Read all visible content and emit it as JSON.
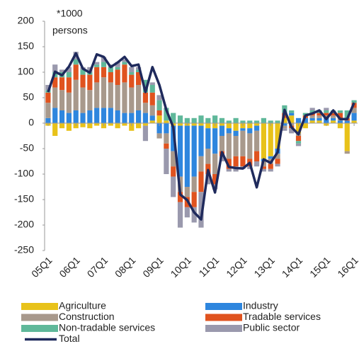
{
  "chart_data": {
    "type": "stacked-bar-line",
    "annotation": [
      "*1000",
      "persons"
    ],
    "categories": [
      "05Q1",
      null,
      null,
      null,
      "06Q1",
      null,
      null,
      null,
      "07Q1",
      null,
      null,
      null,
      "08Q1",
      null,
      null,
      null,
      "09Q1",
      null,
      null,
      null,
      "10Q1",
      null,
      null,
      null,
      "11Q1",
      null,
      null,
      null,
      "12Q1",
      null,
      null,
      null,
      "13Q1",
      null,
      null,
      null,
      "14Q1",
      null,
      null,
      null,
      "15Q1",
      null,
      null,
      null,
      "16Q1"
    ],
    "series": [
      {
        "name": "Agriculture",
        "color": "#e8c21a",
        "values": [
          -5,
          -25,
          -10,
          -15,
          -10,
          -8,
          -10,
          -5,
          -10,
          -5,
          -10,
          -5,
          -15,
          -10,
          -5,
          5,
          15,
          5,
          -5,
          -5,
          -5,
          -5,
          -5,
          -10,
          -10,
          -5,
          -10,
          -15,
          -10,
          -10,
          -5,
          -70,
          -65,
          -50,
          10,
          15,
          -20,
          -10,
          5,
          5,
          -5,
          5,
          -10,
          -55,
          5
        ]
      },
      {
        "name": "Industry",
        "color": "#2e86de",
        "values": [
          10,
          30,
          25,
          20,
          25,
          20,
          25,
          30,
          30,
          30,
          25,
          20,
          20,
          25,
          20,
          10,
          -20,
          -20,
          -50,
          -100,
          -120,
          -100,
          -60,
          -40,
          -50,
          -20,
          -10,
          -10,
          -5,
          -10,
          -10,
          -5,
          -5,
          -10,
          -5,
          5,
          10,
          10,
          5,
          5,
          10,
          5,
          5,
          5,
          15
        ]
      },
      {
        "name": "Construction",
        "color": "#a8998c",
        "values": [
          30,
          40,
          40,
          40,
          60,
          50,
          40,
          50,
          60,
          50,
          50,
          60,
          50,
          50,
          20,
          20,
          -10,
          -20,
          -30,
          -30,
          -20,
          -30,
          -30,
          -30,
          -40,
          -30,
          -50,
          -40,
          -50,
          -50,
          -40,
          -10,
          -10,
          -10,
          -5,
          -5,
          -5,
          0,
          5,
          5,
          5,
          5,
          5,
          -5,
          10
        ]
      },
      {
        "name": "Tradable services",
        "color": "#e0531f",
        "values": [
          20,
          20,
          25,
          30,
          30,
          25,
          30,
          30,
          20,
          20,
          30,
          35,
          25,
          25,
          20,
          25,
          10,
          -10,
          -20,
          -20,
          -20,
          -30,
          -40,
          -20,
          -20,
          -10,
          -20,
          -20,
          -20,
          -15,
          -20,
          -5,
          -10,
          -10,
          10,
          -5,
          -10,
          5,
          5,
          5,
          5,
          5,
          10,
          5,
          10
        ]
      },
      {
        "name": "Non-tradable services",
        "color": "#5fb89a",
        "values": [
          5,
          10,
          10,
          10,
          10,
          10,
          5,
          5,
          10,
          10,
          5,
          5,
          5,
          5,
          25,
          15,
          20,
          25,
          20,
          15,
          10,
          10,
          15,
          10,
          15,
          10,
          5,
          10,
          5,
          5,
          5,
          10,
          5,
          5,
          15,
          5,
          -5,
          5,
          5,
          5,
          5,
          5,
          5,
          15,
          5
        ]
      },
      {
        "name": "Public sector",
        "color": "#9a99ad",
        "values": [
          10,
          15,
          5,
          10,
          15,
          5,
          10,
          5,
          10,
          5,
          10,
          5,
          10,
          5,
          -30,
          5,
          10,
          -50,
          -40,
          -50,
          -20,
          -30,
          -70,
          -20,
          -10,
          -10,
          -5,
          -10,
          -5,
          -5,
          -10,
          -5,
          -5,
          -5,
          -5,
          -10,
          -5,
          0,
          5,
          0,
          5,
          0,
          0,
          0,
          0
        ]
      },
      {
        "name": "Total",
        "color": "#1f2a5c",
        "line": true,
        "values": [
          61,
          101,
          94,
          111,
          137,
          107,
          99,
          135,
          130,
          110,
          119,
          130,
          112,
          115,
          61,
          110,
          75,
          26,
          -8,
          -140,
          -151,
          -175,
          -189,
          -92,
          -136,
          -57,
          -86,
          -88,
          -89,
          -78,
          -126,
          -71,
          -78,
          -57,
          26,
          -8,
          -22,
          15,
          19,
          25,
          8,
          25,
          8,
          8,
          40
        ]
      }
    ],
    "ylim": [
      -250,
      200
    ],
    "yticks": [
      -250,
      -200,
      -150,
      -100,
      -50,
      0,
      50,
      100,
      150,
      200
    ]
  }
}
